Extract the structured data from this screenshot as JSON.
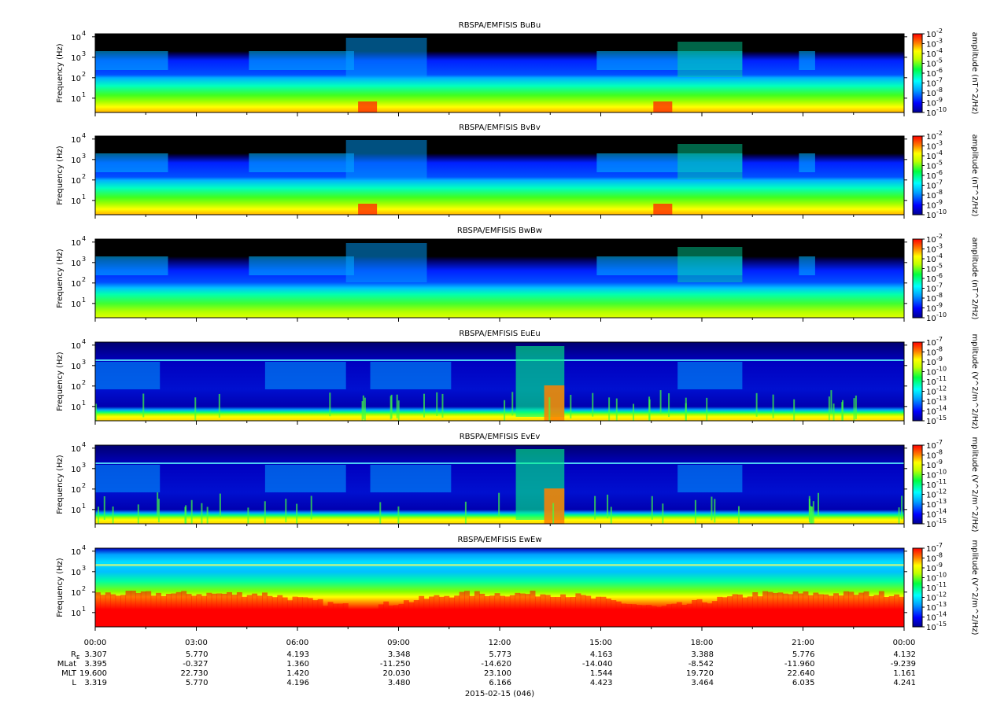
{
  "chart_data": {
    "type": "heatmap",
    "ylabel": "Frequency (Hz)",
    "y_scale": "log",
    "y_ticks": [
      {
        "value": 10,
        "base": "10",
        "exp": "1"
      },
      {
        "value": 100,
        "base": "10",
        "exp": "2"
      },
      {
        "value": 1000,
        "base": "10",
        "exp": "3"
      },
      {
        "value": 10000,
        "base": "10",
        "exp": "4"
      }
    ],
    "ylim": [
      2,
      14000
    ],
    "x_date": "2015-02-15 (046)",
    "x_ticks": [
      "00:00",
      "03:00",
      "06:00",
      "09:00",
      "12:00",
      "15:00",
      "18:00",
      "21:00",
      "00:00"
    ],
    "panels": [
      {
        "title": "RBSPA/EMFISIS  BuBu",
        "cbar_label": "amplitude (nT^2/Hz)",
        "cbar_exps": [
          "-2",
          "-3",
          "-4",
          "-5",
          "-6",
          "-7",
          "-8",
          "-9",
          "-10"
        ],
        "kind": "b"
      },
      {
        "title": "RBSPA/EMFISIS  BvBv",
        "cbar_label": "amplitude (nT^2/Hz)",
        "cbar_exps": [
          "-2",
          "-3",
          "-4",
          "-5",
          "-6",
          "-7",
          "-8",
          "-9",
          "-10"
        ],
        "kind": "b"
      },
      {
        "title": "RBSPA/EMFISIS  BwBw",
        "cbar_label": "amplitude (nT^2/Hz)",
        "cbar_exps": [
          "-2",
          "-3",
          "-4",
          "-5",
          "-6",
          "-7",
          "-8",
          "-9",
          "-10"
        ],
        "kind": "b3"
      },
      {
        "title": "RBSPA/EMFISIS  EuEu",
        "cbar_label": "mplitude (V^2/m^2/Hz)",
        "cbar_exps": [
          "-7",
          "-8",
          "-9",
          "-10",
          "-11",
          "-12",
          "-13",
          "-14",
          "-15"
        ],
        "kind": "e"
      },
      {
        "title": "RBSPA/EMFISIS  EvEv",
        "cbar_label": "mplitude (V^2/m^2/Hz)",
        "cbar_exps": [
          "-7",
          "-8",
          "-9",
          "-10",
          "-11",
          "-12",
          "-13",
          "-14",
          "-15"
        ],
        "kind": "e"
      },
      {
        "title": "RBSPA/EMFISIS  EwEw",
        "cbar_label": "mplitude (V^2/m^2/Hz)",
        "cbar_exps": [
          "-7",
          "-8",
          "-9",
          "-10",
          "-11",
          "-12",
          "-13",
          "-14",
          "-15"
        ],
        "kind": "ew"
      }
    ],
    "orbit_rows": [
      {
        "label": "R",
        "label_sub": "E",
        "values": [
          "3.307",
          "5.770",
          "4.193",
          "3.348",
          "5.773",
          "4.163",
          "3.388",
          "5.776",
          "4.132"
        ]
      },
      {
        "label": "MLat",
        "label_sub": "",
        "values": [
          "3.395",
          "-0.327",
          "1.360",
          "-11.250",
          "-14.620",
          "-14.040",
          "-8.542",
          "-11.960",
          "-9.239"
        ]
      },
      {
        "label": "MLT",
        "label_sub": "",
        "values": [
          "19.600",
          "22.730",
          "1.420",
          "20.030",
          "23.100",
          "1.544",
          "19.720",
          "22.640",
          "1.161"
        ]
      },
      {
        "label": "L",
        "label_sub": "",
        "values": [
          "3.319",
          "5.770",
          "4.196",
          "3.480",
          "6.166",
          "4.423",
          "3.464",
          "6.035",
          "4.241"
        ]
      }
    ]
  }
}
